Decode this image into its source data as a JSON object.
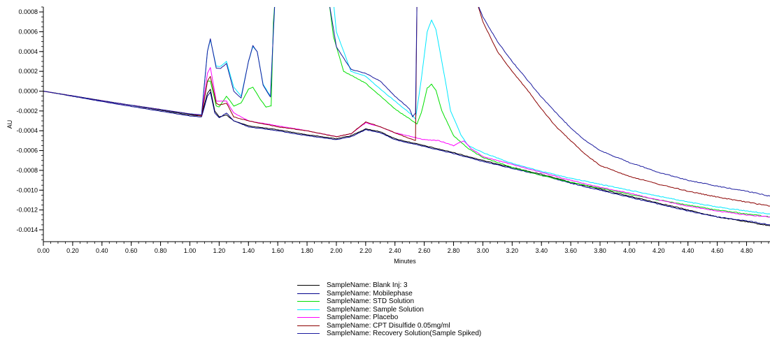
{
  "chart_data": {
    "type": "line",
    "xlabel": "Minutes",
    "ylabel": "AU",
    "xlim": [
      0.0,
      4.96
    ],
    "ylim": [
      -0.00152,
      0.00085
    ],
    "xticks": [
      "0.00",
      "0.20",
      "0.40",
      "0.60",
      "0.80",
      "1.00",
      "1.20",
      "1.40",
      "1.60",
      "1.80",
      "2.00",
      "2.20",
      "2.40",
      "2.60",
      "2.80",
      "3.00",
      "3.20",
      "3.40",
      "3.60",
      "3.80",
      "4.00",
      "4.20",
      "4.40",
      "4.60",
      "4.80"
    ],
    "yticks": [
      "0.0008",
      "0.0006",
      "0.0004",
      "0.0002",
      "0.0000",
      "-0.0002",
      "-0.0004",
      "-0.0006",
      "-0.0008",
      "-0.0010",
      "-0.0012",
      "-0.0014"
    ],
    "grid": false,
    "legend_position": "bottom-center",
    "series": [
      {
        "name": "SampleName: Blank Inj: 3",
        "color": "#000000",
        "x": [
          0,
          0.5,
          1.0,
          1.08,
          1.12,
          1.14,
          1.17,
          1.2,
          1.25,
          1.3,
          1.4,
          1.6,
          1.8,
          2.0,
          2.1,
          2.2,
          2.3,
          2.4,
          2.6,
          2.8,
          3.0,
          3.2,
          3.4,
          3.6,
          3.8,
          4.0,
          4.2,
          4.4,
          4.6,
          4.8,
          4.96
        ],
        "y": [
          0,
          -0.00012,
          -0.00024,
          -0.00025,
          -2e-05,
          2e-05,
          -0.0002,
          -0.00026,
          -0.00024,
          -0.0003,
          -0.00035,
          -0.00039,
          -0.00044,
          -0.00048,
          -0.00045,
          -0.00038,
          -0.00041,
          -0.00048,
          -0.00055,
          -0.00062,
          -0.0007,
          -0.00077,
          -0.00084,
          -0.00092,
          -0.00099,
          -0.00106,
          -0.00113,
          -0.0012,
          -0.00127,
          -0.00132,
          -0.00136
        ]
      },
      {
        "name": "SampleName: Mobilephase",
        "color": "#00008b",
        "x": [
          0,
          0.5,
          1.0,
          1.08,
          1.12,
          1.14,
          1.17,
          1.2,
          1.25,
          1.3,
          1.4,
          1.6,
          1.8,
          2.0,
          2.1,
          2.2,
          2.3,
          2.4,
          2.6,
          2.8,
          3.0,
          3.2,
          3.4,
          3.6,
          3.8,
          4.0,
          4.2,
          4.4,
          4.6,
          4.8,
          4.96
        ],
        "y": [
          0,
          -0.00013,
          -0.00025,
          -0.00026,
          -5e-05,
          -1e-05,
          -0.00022,
          -0.00027,
          -0.00022,
          -0.0003,
          -0.00036,
          -0.0004,
          -0.00045,
          -0.00049,
          -0.00046,
          -0.00039,
          -0.00042,
          -0.00049,
          -0.00056,
          -0.00063,
          -0.00071,
          -0.00078,
          -0.00085,
          -0.00093,
          -0.001,
          -0.00107,
          -0.00114,
          -0.00121,
          -0.00127,
          -0.00131,
          -0.00135
        ]
      },
      {
        "name": "SampleName: STD Solution",
        "color": "#00e000",
        "x": [
          0,
          0.5,
          1.0,
          1.08,
          1.12,
          1.14,
          1.18,
          1.2,
          1.25,
          1.3,
          1.35,
          1.4,
          1.43,
          1.48,
          1.52,
          1.555,
          1.57,
          1.58,
          1.95,
          1.98,
          2.05,
          2.2,
          2.4,
          2.5,
          2.55,
          2.58,
          2.62,
          2.65,
          2.68,
          2.72,
          2.8,
          2.9,
          3.0,
          3.2,
          3.4,
          3.6,
          3.8,
          4.0,
          4.2,
          4.4,
          4.6,
          4.8,
          4.96
        ],
        "y": [
          0,
          -0.00012,
          -0.00023,
          -0.00024,
          0.0001,
          0.0001,
          -0.00015,
          -0.00016,
          -5e-05,
          -0.00015,
          -0.00012,
          2e-05,
          4e-05,
          -8e-05,
          -0.00016,
          -0.00015,
          0.0007,
          0.0009,
          0.0009,
          0.00055,
          0.0002,
          8e-05,
          -0.00018,
          -0.00028,
          -0.00033,
          -0.00022,
          3e-05,
          7e-05,
          1e-05,
          -0.0002,
          -0.00045,
          -0.00058,
          -0.00067,
          -0.00077,
          -0.00085,
          -0.00092,
          -0.00098,
          -0.00104,
          -0.0011,
          -0.00115,
          -0.0012,
          -0.00124,
          -0.00127
        ]
      },
      {
        "name": "SampleName: Sample Solution",
        "color": "#00e8ff",
        "x": [
          0,
          0.5,
          1.0,
          1.08,
          1.12,
          1.14,
          1.18,
          1.21,
          1.25,
          1.3,
          1.35,
          1.4,
          1.43,
          1.46,
          1.5,
          1.55,
          1.57,
          1.58,
          1.98,
          2.0,
          2.1,
          2.2,
          2.3,
          2.4,
          2.5,
          2.54,
          2.58,
          2.62,
          2.65,
          2.68,
          2.72,
          2.78,
          2.85,
          2.9,
          3.0,
          3.2,
          3.4,
          3.6,
          3.8,
          4.0,
          4.2,
          4.4,
          4.6,
          4.8,
          4.96
        ],
        "y": [
          0,
          -0.00012,
          -0.00023,
          -0.00024,
          0.0004,
          0.00052,
          0.00025,
          0.00025,
          0.0003,
          4e-05,
          -5e-05,
          0.0003,
          0.00045,
          0.0004,
          7e-05,
          -5e-05,
          0.0006,
          0.0009,
          0.0009,
          0.0006,
          0.0002,
          0.00015,
          2e-05,
          -0.0001,
          -0.00022,
          -0.00028,
          0.00012,
          0.0006,
          0.00072,
          0.00062,
          0.0003,
          -0.0002,
          -0.00044,
          -0.00055,
          -0.00062,
          -0.00073,
          -0.00081,
          -0.00088,
          -0.00094,
          -0.001,
          -0.00106,
          -0.00112,
          -0.00117,
          -0.00121,
          -0.00124
        ]
      },
      {
        "name": "SampleName: Placebo",
        "color": "#ff00ff",
        "x": [
          0,
          0.5,
          1.0,
          1.08,
          1.12,
          1.14,
          1.18,
          1.2,
          1.25,
          1.3,
          1.4,
          1.6,
          1.8,
          2.0,
          2.1,
          2.2,
          2.3,
          2.4,
          2.6,
          2.7,
          2.8,
          2.87,
          2.92,
          3.0,
          3.2,
          3.4,
          3.6,
          3.8,
          4.0,
          4.2,
          4.4,
          4.6,
          4.8,
          4.96
        ],
        "y": [
          0,
          -0.00012,
          -0.00023,
          -0.00024,
          0.00018,
          0.00024,
          -0.0001,
          -0.0001,
          -0.0001,
          -0.00022,
          -0.0003,
          -0.00035,
          -0.0004,
          -0.00046,
          -0.00043,
          -0.00032,
          -0.00036,
          -0.00042,
          -0.00049,
          -0.0005,
          -0.00055,
          -0.0005,
          -0.00058,
          -0.00066,
          -0.00074,
          -0.00082,
          -0.0009,
          -0.00097,
          -0.00103,
          -0.0011,
          -0.00116,
          -0.00121,
          -0.00125,
          -0.00127
        ]
      },
      {
        "name": "SampleName: CPT Disulfide 0.05mg/ml",
        "color": "#8b0000",
        "x": [
          0,
          0.5,
          1.0,
          1.08,
          1.12,
          1.14,
          1.18,
          1.2,
          1.25,
          1.3,
          1.4,
          1.6,
          1.8,
          2.0,
          2.1,
          2.2,
          2.3,
          2.4,
          2.5,
          2.54,
          2.55,
          2.56,
          2.94,
          2.96,
          3.0,
          3.1,
          3.2,
          3.3,
          3.4,
          3.5,
          3.6,
          3.7,
          3.8,
          4.0,
          4.2,
          4.4,
          4.6,
          4.8,
          4.96
        ],
        "y": [
          0,
          -0.00012,
          -0.00023,
          -0.00025,
          0.0001,
          0.00015,
          -0.00012,
          -0.00014,
          -0.00012,
          -0.00026,
          -0.0003,
          -0.00036,
          -0.0004,
          -0.00046,
          -0.00043,
          -0.00031,
          -0.00036,
          -0.00042,
          -0.00048,
          -0.0005,
          0.0009,
          0.0009,
          0.0009,
          0.0009,
          0.0007,
          0.0004,
          0.0002,
          2e-05,
          -0.00018,
          -0.00036,
          -0.0005,
          -0.00064,
          -0.00075,
          -0.00086,
          -0.00094,
          -0.00101,
          -0.00107,
          -0.00112,
          -0.00116
        ]
      },
      {
        "name": "SampleName: Recovery Solution(Sample Spiked)",
        "color": "#1a1a9e",
        "x": [
          0,
          0.5,
          1.0,
          1.08,
          1.12,
          1.14,
          1.18,
          1.21,
          1.25,
          1.3,
          1.35,
          1.4,
          1.43,
          1.46,
          1.5,
          1.55,
          1.57,
          1.58,
          1.95,
          2.0,
          2.1,
          2.2,
          2.3,
          2.4,
          2.5,
          2.52,
          2.54,
          2.55,
          2.56,
          2.94,
          2.96,
          3.0,
          3.1,
          3.2,
          3.3,
          3.4,
          3.5,
          3.6,
          3.7,
          3.8,
          4.0,
          4.2,
          4.4,
          4.6,
          4.8,
          4.96
        ],
        "y": [
          0,
          -0.00012,
          -0.00023,
          -0.00024,
          0.0004,
          0.00053,
          0.00023,
          0.00023,
          0.00028,
          0.0,
          -7e-05,
          0.0003,
          0.00046,
          0.0004,
          6e-05,
          -6e-05,
          0.0006,
          0.0009,
          0.0009,
          0.00045,
          0.00022,
          0.00018,
          0.0001,
          -5e-05,
          -0.00018,
          -0.00026,
          -0.00022,
          0.0009,
          0.0009,
          0.0009,
          0.0009,
          0.00075,
          0.0005,
          0.0003,
          0.00012,
          -6e-05,
          -0.00022,
          -0.00037,
          -0.0005,
          -0.0006,
          -0.00072,
          -0.00082,
          -0.0009,
          -0.00096,
          -0.00101,
          -0.00106
        ]
      }
    ]
  }
}
